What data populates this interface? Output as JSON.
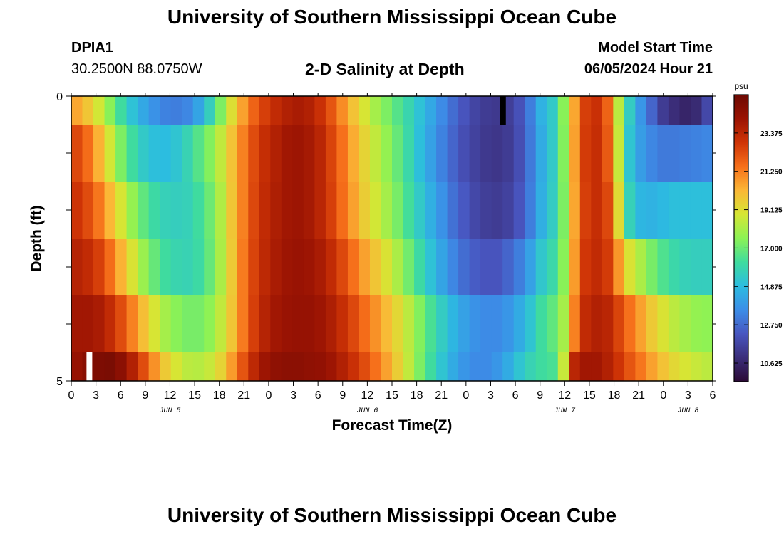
{
  "header": {
    "title": "University of Southern Mississippi Ocean Cube",
    "station_id": "DPIA1",
    "station_coords": "30.2500N  88.0750W",
    "subtitle": "2-D Salinity at Depth",
    "model_start_label": "Model Start Time",
    "model_start_value": "06/05/2024 Hour 21"
  },
  "footer": {
    "title": "University of Southern Mississippi Ocean Cube"
  },
  "chart_data": {
    "type": "heatmap",
    "title": "2-D Salinity at Depth",
    "xlabel": "Forecast Time(Z)",
    "ylabel": "Depth (ft)",
    "x_tick_labels": [
      "0",
      "3",
      "6",
      "9",
      "12",
      "15",
      "18",
      "21",
      "0",
      "3",
      "6",
      "9",
      "12",
      "15",
      "18",
      "21",
      "0",
      "3",
      "6",
      "9",
      "12",
      "15",
      "18",
      "21",
      "0",
      "3",
      "6"
    ],
    "x_hours_range": [
      0,
      78
    ],
    "date_labels": [
      {
        "label": "JUN 5",
        "hour": 12
      },
      {
        "label": "JUN 6",
        "hour": 36
      },
      {
        "label": "JUN 7",
        "hour": 60
      },
      {
        "label": "JUN 8",
        "hour": 75
      }
    ],
    "y_tick_labels": [
      "0",
      "5"
    ],
    "ylim": [
      0,
      5
    ],
    "depth_layers": 5,
    "colorbar": {
      "unit": "psu",
      "tick_labels": [
        "23.375",
        "21.250",
        "19.125",
        "17.000",
        "14.875",
        "12.750",
        "10.625"
      ],
      "range": [
        9.6,
        25.5
      ],
      "colors": [
        "#2b0a35",
        "#3b2e7a",
        "#4856c0",
        "#3c8ee8",
        "#2cbde0",
        "#3fdc9e",
        "#8cf255",
        "#d6e634",
        "#fbb736",
        "#f66f1a",
        "#cf3406",
        "#9a1303",
        "#6c0a03"
      ]
    },
    "markers": [
      {
        "layer": 0,
        "hour": 52.5,
        "color": "#000000"
      },
      {
        "layer": 4,
        "hour": 2.2,
        "color": "#ffffff"
      }
    ],
    "series": [
      {
        "depth_layer": 0,
        "values": [
          20.5,
          19.8,
          18.8,
          17.5,
          16.2,
          15.1,
          14.3,
          13.7,
          13.3,
          13.2,
          13.4,
          14.2,
          15.6,
          17.3,
          19.1,
          20.6,
          21.8,
          22.6,
          23.2,
          23.6,
          23.8,
          23.6,
          23.0,
          22.1,
          21.0,
          19.9,
          18.9,
          18.0,
          17.3,
          16.6,
          15.9,
          15.1,
          14.3,
          13.5,
          12.8,
          12.2,
          11.7,
          11.4,
          11.3,
          11.5,
          12.1,
          13.2,
          14.6,
          15.4,
          17.5,
          20.5,
          22.6,
          23.0,
          21.8,
          18.4,
          15.5,
          13.8,
          12.6,
          11.4,
          10.9,
          10.6,
          10.8,
          11.8
        ]
      },
      {
        "depth_layer": 1,
        "values": [
          22.4,
          21.6,
          20.3,
          18.8,
          17.3,
          16.2,
          15.4,
          15.0,
          14.9,
          15.2,
          15.8,
          16.6,
          17.4,
          18.5,
          19.9,
          21.2,
          22.3,
          23.1,
          23.6,
          24.0,
          24.1,
          23.9,
          23.4,
          22.5,
          21.5,
          20.4,
          19.4,
          18.5,
          17.7,
          16.9,
          16.0,
          15.0,
          14.1,
          13.3,
          12.6,
          12.0,
          11.6,
          11.3,
          11.2,
          11.4,
          12.0,
          13.1,
          14.4,
          15.4,
          17.4,
          20.6,
          22.7,
          23.1,
          22.0,
          18.6,
          15.2,
          14.0,
          13.4,
          13.1,
          13.1,
          13.2,
          13.3,
          13.4
        ]
      },
      {
        "depth_layer": 2,
        "values": [
          22.9,
          22.3,
          21.4,
          20.2,
          18.9,
          17.7,
          16.8,
          16.1,
          15.7,
          15.6,
          15.7,
          16.2,
          17.0,
          18.2,
          19.8,
          21.2,
          22.4,
          23.2,
          23.7,
          24.0,
          24.1,
          23.9,
          23.4,
          22.6,
          21.6,
          20.6,
          19.6,
          18.8,
          18.0,
          17.2,
          16.3,
          15.4,
          14.5,
          13.7,
          12.9,
          12.3,
          11.8,
          11.5,
          11.4,
          11.6,
          12.2,
          13.2,
          14.5,
          15.5,
          17.3,
          20.5,
          22.6,
          23.1,
          22.4,
          19.2,
          15.7,
          14.7,
          14.6,
          14.8,
          15.0,
          15.0,
          15.0,
          15.0
        ]
      },
      {
        "depth_layer": 3,
        "values": [
          23.5,
          23.2,
          22.6,
          21.6,
          20.3,
          19.0,
          17.8,
          16.9,
          16.2,
          15.9,
          15.8,
          16.1,
          16.9,
          18.1,
          19.7,
          21.3,
          22.5,
          23.3,
          23.8,
          24.1,
          24.2,
          24.1,
          23.8,
          23.2,
          22.4,
          21.5,
          20.6,
          19.8,
          19.0,
          18.1,
          17.1,
          16.1,
          15.1,
          14.2,
          13.4,
          12.8,
          12.4,
          12.2,
          12.2,
          12.6,
          13.2,
          14.1,
          15.3,
          16.0,
          17.5,
          20.7,
          22.8,
          23.2,
          22.7,
          20.8,
          19.0,
          18.1,
          17.2,
          16.5,
          16.0,
          15.7,
          15.6,
          15.6
        ]
      },
      {
        "depth_layer": 4,
        "values": [
          24.0,
          24.0,
          23.8,
          23.2,
          22.3,
          21.2,
          20.0,
          18.9,
          18.0,
          17.5,
          17.2,
          17.2,
          17.6,
          18.5,
          19.8,
          21.3,
          22.6,
          23.5,
          24.0,
          24.2,
          24.3,
          24.3,
          24.1,
          23.7,
          23.1,
          22.4,
          21.6,
          20.9,
          20.1,
          19.3,
          18.4,
          17.4,
          16.4,
          15.5,
          14.7,
          14.1,
          13.7,
          13.5,
          13.5,
          13.8,
          14.4,
          15.2,
          16.2,
          16.8,
          18.0,
          21.2,
          23.2,
          23.6,
          23.4,
          22.5,
          21.5,
          20.6,
          19.7,
          19.0,
          18.4,
          18.0,
          17.7,
          17.6
        ]
      },
      {
        "depth_layer": 5,
        "values": [
          24.3,
          24.7,
          25.0,
          25.1,
          24.6,
          23.6,
          22.3,
          20.9,
          19.7,
          18.9,
          18.4,
          18.3,
          18.6,
          19.4,
          20.7,
          22.1,
          23.3,
          24.1,
          24.5,
          24.6,
          24.6,
          24.5,
          24.4,
          24.1,
          23.6,
          23.0,
          22.3,
          21.5,
          20.6,
          19.6,
          18.5,
          17.3,
          16.2,
          15.2,
          14.4,
          13.8,
          13.5,
          13.5,
          13.8,
          14.4,
          15.2,
          15.8,
          16.2,
          16.4,
          18.6,
          23.4,
          24.0,
          24.0,
          23.6,
          22.9,
          22.1,
          21.4,
          20.6,
          19.9,
          19.3,
          18.9,
          18.6,
          18.4
        ]
      }
    ]
  }
}
